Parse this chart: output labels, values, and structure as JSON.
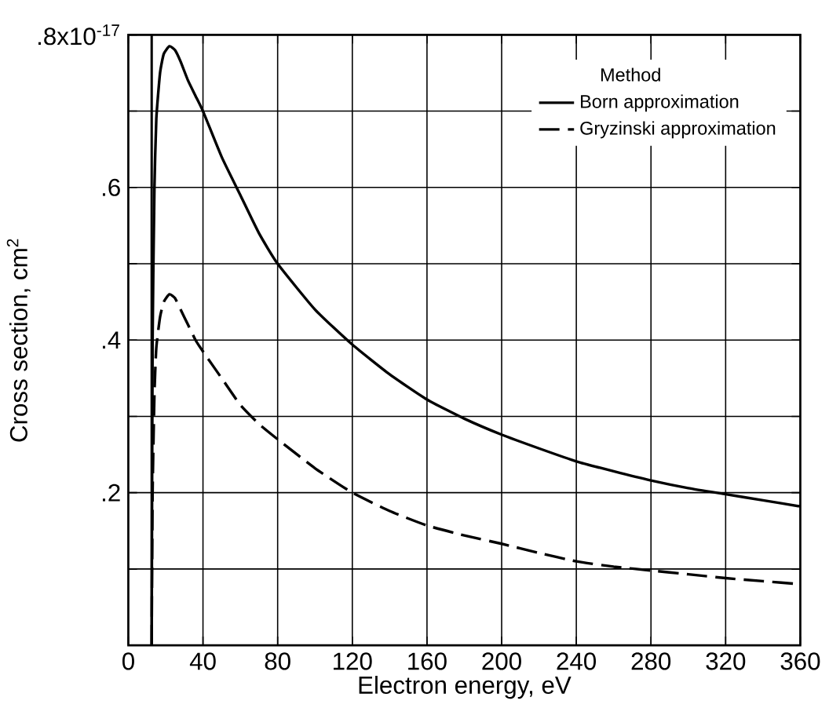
{
  "chart_data": {
    "type": "line",
    "xlabel": "Electron energy,  eV",
    "ylabel": "Cross section,  cm$^{2}$",
    "legend_title": "Method",
    "xlim": [
      0,
      360
    ],
    "ylim": [
      0,
      0.8
    ],
    "xticks": [
      0,
      40,
      80,
      120,
      160,
      200,
      240,
      280,
      320,
      360
    ],
    "yticks": [
      {
        "value": 0.1,
        "label": null
      },
      {
        "value": 0.2,
        "label": ".2"
      },
      {
        "value": 0.3,
        "label": null
      },
      {
        "value": 0.4,
        "label": ".4"
      },
      {
        "value": 0.5,
        "label": null
      },
      {
        "value": 0.6,
        "label": ".6"
      },
      {
        "value": 0.7,
        "label": null
      },
      {
        "value": 0.8,
        "label": ".8x10$^{-17}$"
      }
    ],
    "grid": true,
    "legend": "top right",
    "marker": "none",
    "ref_lines": [
      {
        "axis": "x",
        "value": 12.5
      }
    ],
    "series": [
      {
        "name": "Born approximation",
        "color": "#000000",
        "line_style": "solid",
        "x": [
          12.5,
          13,
          14,
          15,
          17,
          19,
          22,
          25,
          28,
          32,
          36,
          40,
          50,
          60,
          70,
          80,
          100,
          120,
          140,
          160,
          180,
          200,
          220,
          240,
          260,
          280,
          300,
          320,
          340,
          360
        ],
        "values": [
          0,
          0.4,
          0.6,
          0.69,
          0.75,
          0.775,
          0.785,
          0.78,
          0.765,
          0.74,
          0.72,
          0.7,
          0.64,
          0.59,
          0.54,
          0.5,
          0.44,
          0.394,
          0.355,
          0.322,
          0.297,
          0.276,
          0.258,
          0.241,
          0.228,
          0.216,
          0.206,
          0.198,
          0.19,
          0.182
        ]
      },
      {
        "name": "Gryzinski approximation",
        "color": "#000000",
        "line_style": "dashed",
        "x": [
          12.5,
          13,
          14,
          15,
          17,
          19,
          22,
          25,
          28,
          32,
          36,
          40,
          50,
          60,
          70,
          80,
          100,
          120,
          140,
          160,
          180,
          200,
          220,
          240,
          260,
          280,
          300,
          320,
          340,
          360
        ],
        "values": [
          0,
          0.2,
          0.33,
          0.39,
          0.43,
          0.45,
          0.46,
          0.455,
          0.44,
          0.42,
          0.4,
          0.385,
          0.35,
          0.315,
          0.29,
          0.27,
          0.232,
          0.2,
          0.176,
          0.157,
          0.144,
          0.133,
          0.121,
          0.11,
          0.103,
          0.098,
          0.093,
          0.088,
          0.084,
          0.08
        ]
      }
    ]
  }
}
